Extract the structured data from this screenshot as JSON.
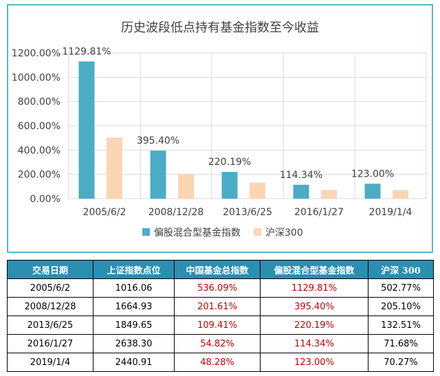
{
  "colors": {
    "series1": "#4bacc6",
    "series2": "#fcd5b5",
    "table_header_bg": "#2a8fb0",
    "table_red_text": "#c00000",
    "panel_border": "#58b7c7"
  },
  "chart_data": {
    "type": "bar",
    "title": "历史波段低点持有基金指数至今收益",
    "categories": [
      "2005/6/2",
      "2008/12/28",
      "2013/6/25",
      "2016/1/27",
      "2019/1/4"
    ],
    "series": [
      {
        "name": "偏股混合型基金指数",
        "values": [
          1129.81,
          395.4,
          220.19,
          114.34,
          123.0
        ]
      },
      {
        "name": "沪深300",
        "values": [
          502.77,
          205.1,
          132.51,
          71.68,
          70.27
        ]
      }
    ],
    "data_labels": [
      "1129.81%",
      "395.40%",
      "220.19%",
      "114.34%",
      "123.00%"
    ],
    "y_ticks": [
      "0.00%",
      "200.00%",
      "400.00%",
      "600.00%",
      "800.00%",
      "1000.00%",
      "1200.00%"
    ],
    "ylim": [
      0,
      1200
    ],
    "grid": true,
    "legend_position": "bottom"
  },
  "table": {
    "headers": [
      "交易日期",
      "上证指数点位",
      "中国基金总指数",
      "偏股混合型基金指数",
      "沪深 300"
    ],
    "rows": [
      [
        "2005/6/2",
        "1016.06",
        "536.09%",
        "1129.81%",
        "502.77%"
      ],
      [
        "2008/12/28",
        "1664.93",
        "201.61%",
        "395.40%",
        "205.10%"
      ],
      [
        "2013/6/25",
        "1849.65",
        "109.41%",
        "220.19%",
        "132.51%"
      ],
      [
        "2016/1/27",
        "2638.30",
        "54.82%",
        "114.34%",
        "71.68%"
      ],
      [
        "2019/1/4",
        "2440.91",
        "48.28%",
        "123.00%",
        "70.27%"
      ]
    ]
  }
}
